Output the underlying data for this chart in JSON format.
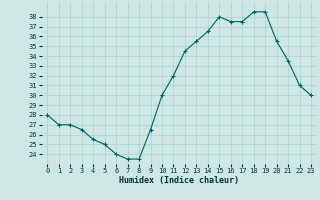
{
  "x": [
    0,
    1,
    2,
    3,
    4,
    5,
    6,
    7,
    8,
    9,
    10,
    11,
    12,
    13,
    14,
    15,
    16,
    17,
    18,
    19,
    20,
    21,
    22,
    23
  ],
  "y": [
    28,
    27,
    27,
    26.5,
    25.5,
    25,
    24,
    23.5,
    23.5,
    26.5,
    30,
    32,
    34.5,
    35.5,
    36.5,
    38,
    37.5,
    37.5,
    38.5,
    38.5,
    35.5,
    33.5,
    31,
    30
  ],
  "line_color": "#006060",
  "marker": "+",
  "marker_color": "#006060",
  "bg_color": "#cce8e4",
  "grid_color": "#aad0cc",
  "xlabel": "Humidex (Indice chaleur)",
  "xlabel_color": "#003333",
  "tick_color": "#003333",
  "ylim": [
    23.0,
    39.5
  ],
  "xlim": [
    -0.5,
    23.5
  ],
  "yticks": [
    24,
    25,
    26,
    27,
    28,
    29,
    30,
    31,
    32,
    33,
    34,
    35,
    36,
    37,
    38
  ],
  "xticks": [
    0,
    1,
    2,
    3,
    4,
    5,
    6,
    7,
    8,
    9,
    10,
    11,
    12,
    13,
    14,
    15,
    16,
    17,
    18,
    19,
    20,
    21,
    22,
    23
  ],
  "tick_fontsize": 5.0,
  "xlabel_fontsize": 6.0
}
